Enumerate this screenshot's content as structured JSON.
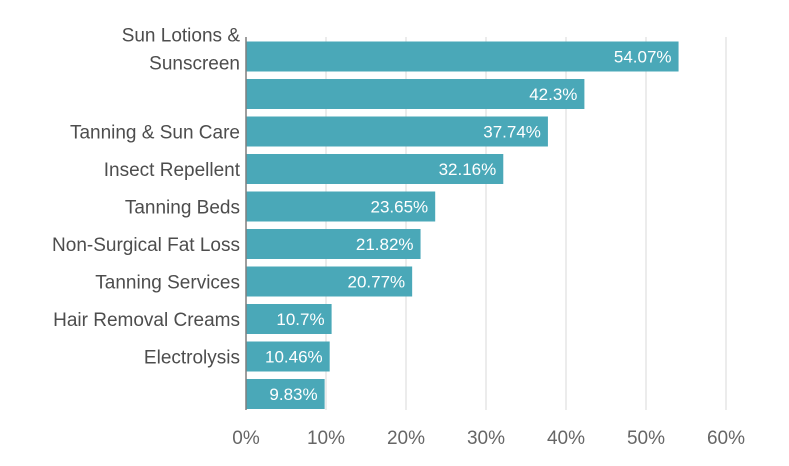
{
  "chart_data": {
    "type": "bar",
    "orientation": "horizontal",
    "title": "",
    "xlabel": "",
    "ylabel": "",
    "categories": [
      [
        "Sun Lotions &",
        "Sunscreen"
      ],
      [
        ""
      ],
      [
        "Tanning & Sun Care"
      ],
      [
        "Insect Repellent"
      ],
      [
        "Tanning Beds"
      ],
      [
        "Non-Surgical Fat Loss"
      ],
      [
        "Tanning Services"
      ],
      [
        "Hair Removal Creams"
      ],
      [
        "Electrolysis"
      ],
      [
        ""
      ]
    ],
    "values": [
      54.07,
      42.3,
      37.74,
      32.16,
      23.65,
      21.82,
      20.77,
      10.7,
      10.46,
      9.83
    ],
    "value_labels": [
      "54.07%",
      "42.3%",
      "37.74%",
      "32.16%",
      "23.65%",
      "21.82%",
      "20.77%",
      "10.7%",
      "10.46%",
      "9.83%"
    ],
    "xlim": [
      0,
      60
    ],
    "x_ticks": [
      0,
      10,
      20,
      30,
      40,
      50,
      60
    ],
    "x_tick_labels": [
      "0%",
      "10%",
      "20%",
      "30%",
      "40%",
      "50%",
      "60%"
    ],
    "grid": true,
    "bar_color": "#4aa8b8",
    "grid_color": "#d9d9d9",
    "axis_color": "#7f7f7f"
  }
}
